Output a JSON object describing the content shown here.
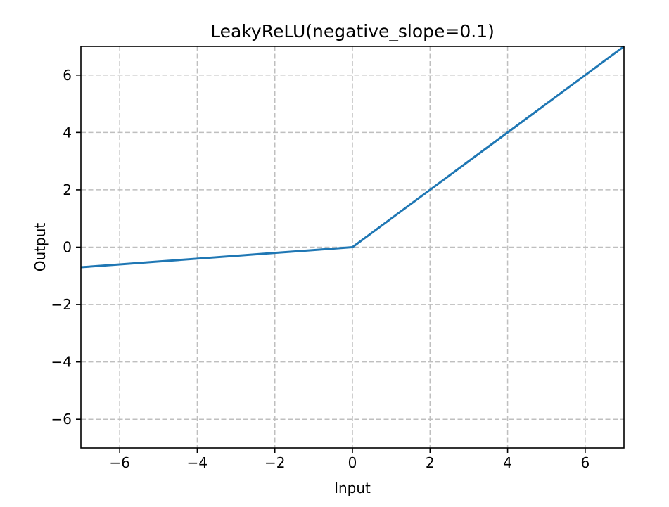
{
  "chart_data": {
    "type": "line",
    "title": "LeakyReLU(negative_slope=0.1)",
    "xlabel": "Input",
    "ylabel": "Output",
    "xlim": [
      -7,
      7
    ],
    "ylim": [
      -7,
      7
    ],
    "xticks": [
      -6,
      -4,
      -2,
      0,
      2,
      4,
      6
    ],
    "yticks": [
      -6,
      -4,
      -2,
      0,
      2,
      4,
      6
    ],
    "grid": true,
    "grid_style": "dashed",
    "legend": "none",
    "series": [
      {
        "name": "LeakyReLU, negative_slope=0.1",
        "color": "#1f77b4",
        "x": [
          -7,
          -6,
          -5,
          -4,
          -3,
          -2,
          -1,
          0,
          1,
          2,
          3,
          4,
          5,
          6,
          7
        ],
        "y": [
          -0.7,
          -0.6,
          -0.5,
          -0.4,
          -0.3,
          -0.2,
          -0.1,
          0,
          1,
          2,
          3,
          4,
          5,
          6,
          7
        ]
      }
    ],
    "colors": {
      "line": "#1f77b4",
      "grid": "#bfbfbf",
      "axis": "#000000",
      "text": "#000000",
      "background": "#ffffff"
    }
  }
}
